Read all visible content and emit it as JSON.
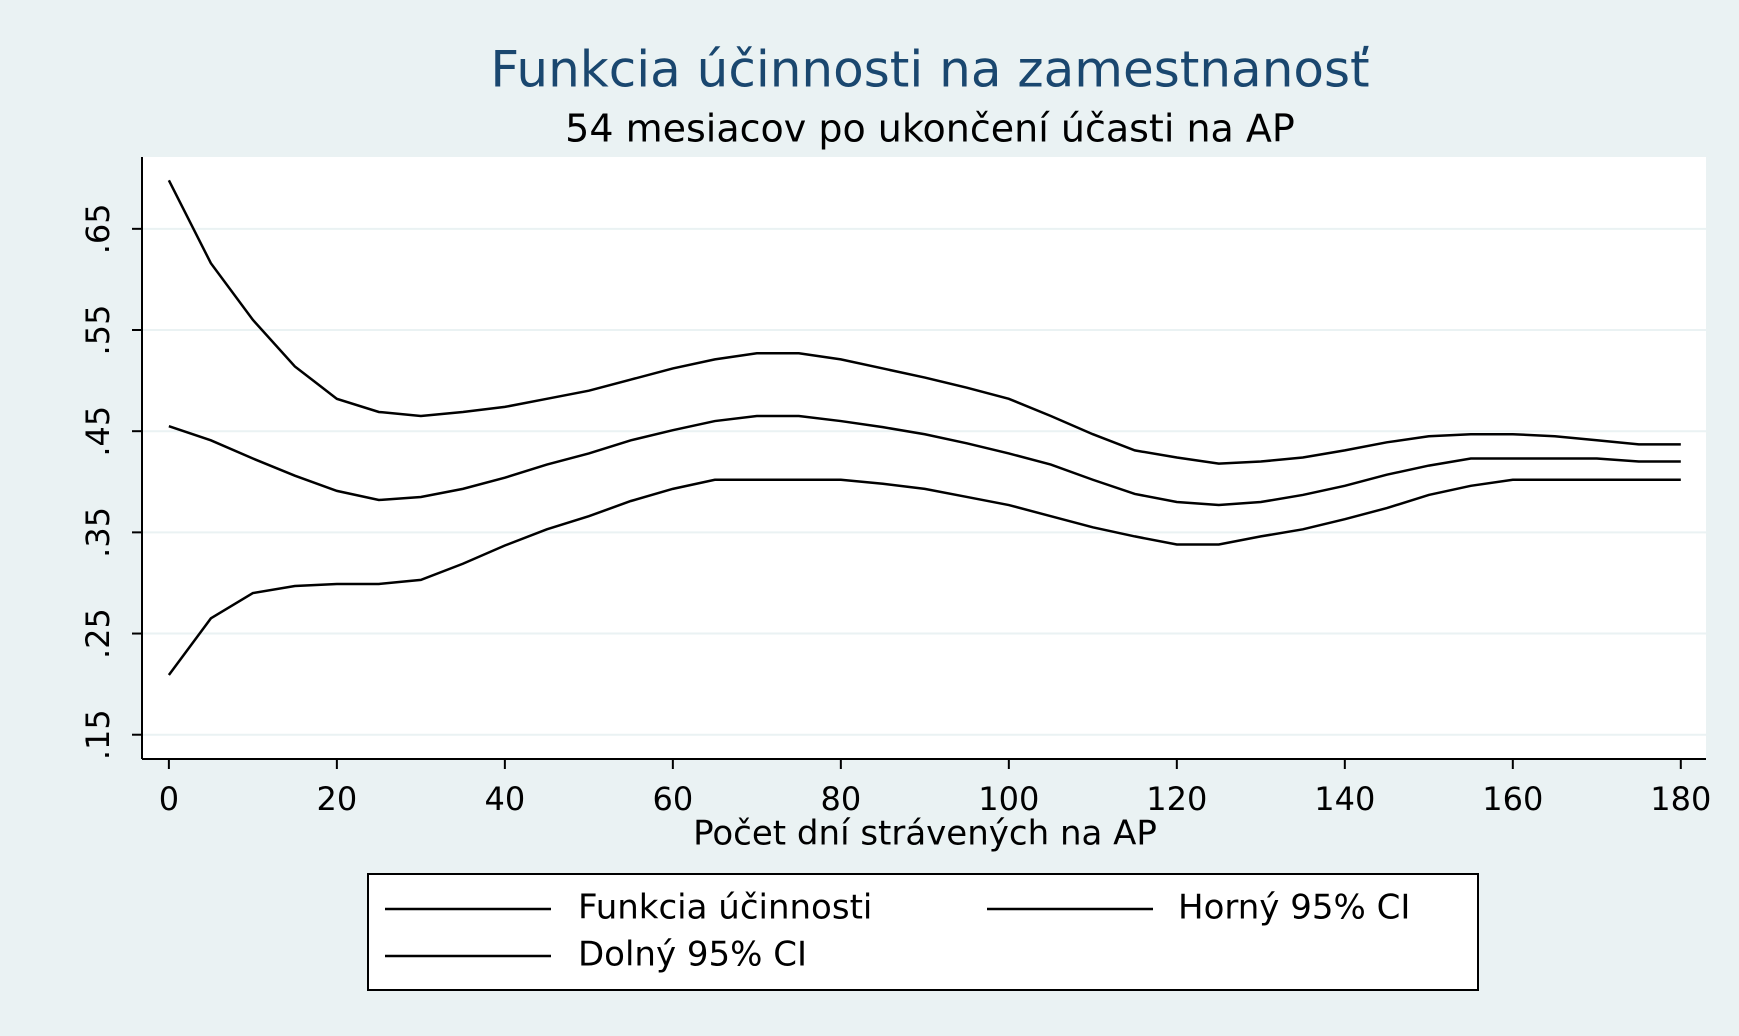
{
  "chart_data": {
    "type": "line",
    "title": "Funkcia účinnosti na zamestnanosť",
    "subtitle": "54 mesiacov po ukončení účasti na AP",
    "x_label": "Počet dní strávených na AP",
    "x": [
      0,
      5,
      10,
      15,
      20,
      25,
      30,
      35,
      40,
      45,
      50,
      55,
      60,
      65,
      70,
      75,
      80,
      85,
      90,
      95,
      100,
      105,
      110,
      115,
      120,
      125,
      130,
      135,
      140,
      145,
      150,
      155,
      160,
      165,
      170,
      175,
      180
    ],
    "series": [
      {
        "name": "Funkcia účinnosti",
        "color": "#000000",
        "values": [
          0.455,
          0.441,
          0.423,
          0.406,
          0.391,
          0.382,
          0.385,
          0.393,
          0.404,
          0.417,
          0.428,
          0.441,
          0.451,
          0.46,
          0.465,
          0.465,
          0.46,
          0.454,
          0.447,
          0.438,
          0.428,
          0.417,
          0.402,
          0.388,
          0.38,
          0.377,
          0.38,
          0.387,
          0.396,
          0.407,
          0.416,
          0.423,
          0.423,
          0.423,
          0.423,
          0.42,
          0.42
        ]
      },
      {
        "name": "Horný 95% CI",
        "color": "#000000",
        "values": [
          0.698,
          0.616,
          0.56,
          0.514,
          0.482,
          0.469,
          0.465,
          0.469,
          0.474,
          0.482,
          0.49,
          0.501,
          0.512,
          0.521,
          0.527,
          0.527,
          0.521,
          0.512,
          0.503,
          0.493,
          0.482,
          0.465,
          0.447,
          0.431,
          0.424,
          0.418,
          0.42,
          0.424,
          0.431,
          0.439,
          0.445,
          0.447,
          0.447,
          0.445,
          0.441,
          0.437,
          0.437
        ]
      },
      {
        "name": "Dolný 95% CI",
        "color": "#000000",
        "values": [
          0.209,
          0.265,
          0.29,
          0.297,
          0.299,
          0.299,
          0.303,
          0.319,
          0.337,
          0.353,
          0.366,
          0.381,
          0.393,
          0.402,
          0.402,
          0.402,
          0.402,
          0.398,
          0.393,
          0.385,
          0.377,
          0.366,
          0.355,
          0.346,
          0.338,
          0.338,
          0.346,
          0.353,
          0.363,
          0.374,
          0.387,
          0.396,
          0.402,
          0.402,
          0.402,
          0.402,
          0.402
        ]
      }
    ],
    "xlim": [
      -3.2,
      183
    ],
    "xticks": [
      0,
      20,
      40,
      60,
      80,
      100,
      120,
      140,
      160,
      180
    ],
    "ylim": [
      0.126,
      0.721
    ],
    "yticks": [
      {
        "value": 0.15,
        "label": ".15"
      },
      {
        "value": 0.25,
        "label": ".25"
      },
      {
        "value": 0.35,
        "label": ".35"
      },
      {
        "value": 0.45,
        "label": ".45"
      },
      {
        "value": 0.55,
        "label": ".55"
      },
      {
        "value": 0.65,
        "label": ".65"
      }
    ],
    "grid": true,
    "legend": "bottom"
  }
}
